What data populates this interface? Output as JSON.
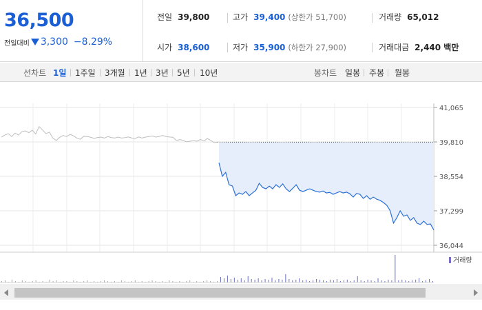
{
  "quote": {
    "price": "36,500",
    "change_label": "전일대비",
    "change_value": "3,300",
    "change_pct": "−8.29%",
    "direction_icon": "down-triangle-icon",
    "stats": {
      "prev_close": {
        "label": "전일",
        "value": "39,800"
      },
      "high": {
        "label": "고가",
        "value": "39,400",
        "sub": "(상한가 51,700)"
      },
      "volume": {
        "label": "거래량",
        "value": "65,012"
      },
      "open": {
        "label": "시가",
        "value": "38,600"
      },
      "low": {
        "label": "저가",
        "value": "35,900",
        "sub": "(하한가 27,900)"
      },
      "turnover": {
        "label": "거래대금",
        "value": "2,440 백만"
      }
    }
  },
  "periods": {
    "label": "선차트",
    "items": [
      "1일",
      "1주일",
      "3개월",
      "1년",
      "3년",
      "5년",
      "10년"
    ],
    "active": "1일"
  },
  "chart_types": {
    "label": "봉차트",
    "items": [
      "일봉",
      "주봉",
      "월봉"
    ]
  },
  "colors": {
    "down": "#1a5fd6",
    "line": "#2a6fd6",
    "fill": "#e6eefb",
    "prev_line": "#bdbdbd"
  },
  "chart_data": {
    "type": "line",
    "title": "",
    "xlabel": "",
    "ylabel": "",
    "y_ticks": [
      "41,065",
      "39,810",
      "38,554",
      "37,299",
      "36,044"
    ],
    "ylim": [
      36044,
      41065
    ],
    "reference_line": 39800,
    "series": [
      {
        "values": [
          39985,
          40060,
          40110,
          40005,
          40130,
          40060,
          40185,
          40210,
          40145,
          40235,
          40100,
          40370,
          40245,
          40110,
          40165,
          39950,
          39860,
          39980,
          40045,
          40005,
          40085,
          40030,
          39950,
          39905,
          40015,
          40005,
          39980,
          39940,
          39970,
          39985,
          39950,
          40005,
          39970,
          39950,
          39985,
          39950,
          39965,
          39990,
          39950,
          39935,
          39990,
          39950,
          39985,
          40005,
          40030,
          39985,
          40010,
          40045,
          40005,
          39990,
          39980,
          39860,
          39895,
          39865,
          39810,
          39835,
          39860,
          39835,
          39900,
          39840,
          39935,
          39865,
          39785,
          39800
        ],
        "style": "previous-day"
      },
      {
        "values": [
          39050,
          38555,
          38700,
          38250,
          38200,
          37850,
          37950,
          37900,
          38000,
          37850,
          37950,
          38050,
          38300,
          38150,
          38100,
          38200,
          38100,
          38250,
          38150,
          38280,
          38100,
          38000,
          38120,
          38250,
          38050,
          38000,
          38050,
          38100,
          38050,
          38000,
          37980,
          38020,
          37950,
          37970,
          37900,
          37950,
          38000,
          37950,
          37980,
          37920,
          37800,
          37930,
          37900,
          37750,
          37850,
          37720,
          37800,
          37720,
          37680,
          37600,
          37500,
          37300,
          36850,
          37050,
          37300,
          37100,
          37150,
          36950,
          37050,
          36850,
          36800,
          36920,
          36800,
          36820,
          36600
        ],
        "style": "today"
      }
    ],
    "volume_label": "거래량",
    "volume": [
      2,
      3,
      1,
      4,
      2,
      1,
      3,
      2,
      1,
      2,
      3,
      1,
      2,
      1,
      4,
      2,
      3,
      1,
      2,
      2,
      1,
      3,
      2,
      1,
      2,
      3,
      1,
      2,
      1,
      2,
      3,
      2,
      1,
      2,
      1,
      3,
      2,
      1,
      2,
      3,
      1,
      2,
      1,
      2,
      3,
      2,
      1,
      2,
      1,
      3,
      2,
      1,
      2,
      1,
      2,
      3,
      1,
      2,
      1,
      2,
      3,
      2,
      1,
      2,
      8,
      6,
      10,
      5,
      7,
      4,
      6,
      3,
      9,
      5,
      4,
      6,
      3,
      5,
      4,
      7,
      3,
      5,
      4,
      12,
      5,
      3,
      4,
      6,
      3,
      4,
      2,
      3,
      5,
      4,
      3,
      2,
      4,
      3,
      5,
      2,
      3,
      4,
      2,
      3,
      9,
      3,
      2,
      4,
      3,
      2,
      6,
      3,
      2,
      4,
      3,
      40,
      3,
      4,
      3,
      2,
      3,
      4,
      6,
      2,
      3,
      5,
      2
    ]
  },
  "scrollbar": {
    "left_icon": "scroll-left-arrow-icon",
    "right_icon": "scroll-right-arrow-icon"
  }
}
